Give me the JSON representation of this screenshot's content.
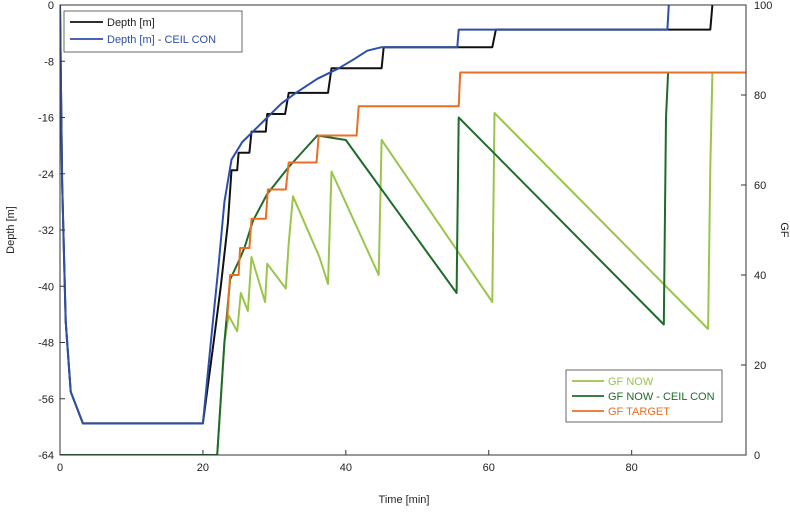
{
  "chart_data": {
    "type": "line",
    "xlabel": "Time [min]",
    "ylabel_left": "Depth [m]",
    "ylabel_right": "GF",
    "xlim": [
      0,
      96
    ],
    "ylim_left": [
      -64,
      0
    ],
    "ylim_right": [
      0,
      100
    ],
    "x_ticks": [
      0,
      20,
      40,
      60,
      80
    ],
    "y_left_ticks": [
      0,
      -8,
      -16,
      -24,
      -32,
      -40,
      -48,
      -56,
      -64
    ],
    "y_right_ticks": [
      0,
      20,
      40,
      60,
      80,
      100
    ],
    "grid": false,
    "legend_depth": {
      "placement": "top-left",
      "entries": [
        "Depth [m]",
        "Depth [m] - CEIL CON"
      ]
    },
    "legend_gf": {
      "placement": "bottom-right",
      "entries": [
        "GF NOW",
        "GF NOW - CEIL CON",
        "GF TARGET"
      ]
    },
    "series": [
      {
        "name": "Depth [m]",
        "axis": "left",
        "color": "#111111",
        "points": [
          [
            0,
            0
          ],
          [
            0.3,
            -25
          ],
          [
            0.8,
            -45
          ],
          [
            1.5,
            -55
          ],
          [
            3.2,
            -59.5
          ],
          [
            20,
            -59.5
          ],
          [
            21.5,
            -48
          ],
          [
            22.5,
            -40
          ],
          [
            23.5,
            -31
          ],
          [
            24,
            -23.5
          ],
          [
            24.8,
            -23.5
          ],
          [
            25,
            -21
          ],
          [
            26.5,
            -21
          ],
          [
            26.8,
            -18
          ],
          [
            28.8,
            -18
          ],
          [
            29,
            -15.5
          ],
          [
            31.5,
            -15.5
          ],
          [
            32,
            -12.5
          ],
          [
            37.5,
            -12.5
          ],
          [
            38,
            -9
          ],
          [
            45,
            -9
          ],
          [
            45.3,
            -6
          ],
          [
            60.5,
            -6
          ],
          [
            61,
            -3.5
          ],
          [
            91,
            -3.5
          ],
          [
            91.3,
            0
          ]
        ]
      },
      {
        "name": "Depth [m] - CEIL CON",
        "axis": "left",
        "color": "#2d4fa8",
        "points": [
          [
            0,
            0
          ],
          [
            0.3,
            -25
          ],
          [
            0.8,
            -45
          ],
          [
            1.5,
            -55
          ],
          [
            3.2,
            -59.5
          ],
          [
            20,
            -59.5
          ],
          [
            21.2,
            -47
          ],
          [
            22.2,
            -37
          ],
          [
            23,
            -28
          ],
          [
            24,
            -22
          ],
          [
            25.5,
            -19.5
          ],
          [
            27,
            -18
          ],
          [
            29,
            -16
          ],
          [
            31,
            -14
          ],
          [
            33,
            -12.5
          ],
          [
            36,
            -10.5
          ],
          [
            39,
            -9
          ],
          [
            41,
            -7.8
          ],
          [
            43,
            -6.5
          ],
          [
            45,
            -6
          ],
          [
            55.6,
            -6
          ],
          [
            55.8,
            -3.5
          ],
          [
            85,
            -3.5
          ],
          [
            85.2,
            0
          ]
        ]
      },
      {
        "name": "GF NOW",
        "axis": "right",
        "color": "#9ac54a",
        "points": [
          [
            0,
            0
          ],
          [
            22,
            0
          ],
          [
            23,
            25
          ],
          [
            23.6,
            31
          ],
          [
            24.8,
            27.5
          ],
          [
            25.3,
            36
          ],
          [
            26.3,
            32
          ],
          [
            26.8,
            44
          ],
          [
            28.7,
            34
          ],
          [
            29,
            42.5
          ],
          [
            31.6,
            37
          ],
          [
            32,
            47
          ],
          [
            32.6,
            57.5
          ],
          [
            36.3,
            44
          ],
          [
            37.5,
            38
          ],
          [
            38,
            63
          ],
          [
            44.6,
            40
          ],
          [
            45,
            70
          ],
          [
            60.5,
            34
          ],
          [
            60.8,
            76
          ],
          [
            90.7,
            28
          ],
          [
            91,
            64
          ],
          [
            91.3,
            85
          ]
        ]
      },
      {
        "name": "GF NOW - CEIL CON",
        "axis": "right",
        "color": "#1e6b2a",
        "points": [
          [
            0,
            0
          ],
          [
            22,
            0
          ],
          [
            23,
            25
          ],
          [
            23.8,
            39
          ],
          [
            24.4,
            41
          ],
          [
            25,
            43
          ],
          [
            25.8,
            46
          ],
          [
            27,
            52
          ],
          [
            29,
            58
          ],
          [
            32,
            64
          ],
          [
            36,
            71
          ],
          [
            40,
            70
          ],
          [
            55.5,
            36
          ],
          [
            55.8,
            75
          ],
          [
            84.5,
            29
          ],
          [
            84.8,
            75
          ],
          [
            85.1,
            85
          ]
        ]
      },
      {
        "name": "GF TARGET",
        "axis": "right",
        "color": "#ea6f24",
        "points": [
          [
            23.4,
            30
          ],
          [
            23.8,
            40
          ],
          [
            25,
            40
          ],
          [
            25.2,
            46
          ],
          [
            26.5,
            46
          ],
          [
            26.8,
            52.5
          ],
          [
            28.8,
            52.5
          ],
          [
            29.1,
            59
          ],
          [
            31.6,
            59
          ],
          [
            32,
            65
          ],
          [
            35.9,
            65
          ],
          [
            36.2,
            71
          ],
          [
            41.5,
            71
          ],
          [
            41.8,
            77.5
          ],
          [
            55.8,
            77.5
          ],
          [
            56,
            85
          ],
          [
            96,
            85
          ]
        ]
      }
    ]
  }
}
